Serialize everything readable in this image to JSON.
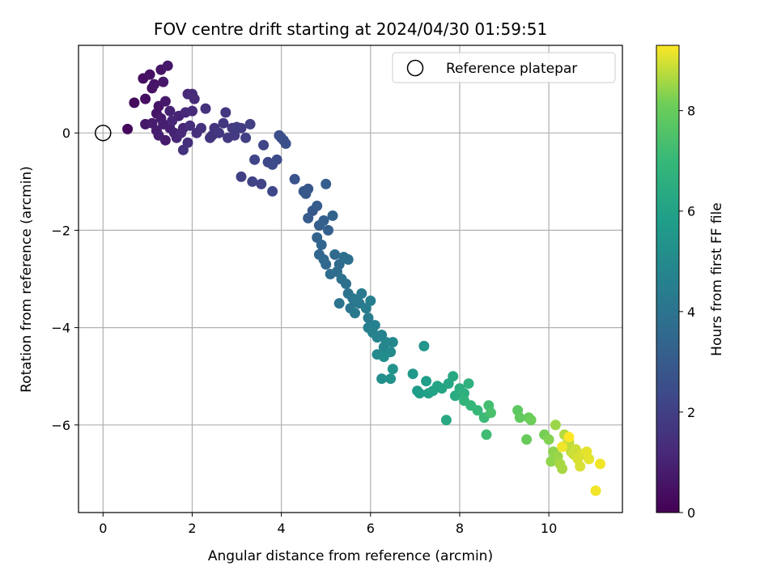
{
  "chart_data": {
    "type": "scatter",
    "title": "FOV centre drift starting at 2024/04/30 01:59:51",
    "xlabel": "Angular distance from reference (arcmin)",
    "ylabel": "Rotation from reference (arcmin)",
    "xlim": [
      -0.55,
      11.65
    ],
    "ylim": [
      -7.8,
      1.8
    ],
    "xticks": [
      0,
      2,
      4,
      6,
      8,
      10
    ],
    "yticks": [
      0,
      -2,
      -4,
      -6
    ],
    "grid": true,
    "legend": {
      "placement": "top-right",
      "entries": [
        "Reference platepar"
      ]
    },
    "colorbar": {
      "label": "Hours from first FF file",
      "min": 0,
      "max": 9.3,
      "ticks": [
        0,
        2,
        4,
        6,
        8
      ],
      "colormap": "viridis"
    },
    "reference_point": {
      "x": 0,
      "y": 0,
      "label": "Reference platepar"
    },
    "points": [
      [
        0.55,
        0.08,
        0.2
      ],
      [
        0.7,
        0.62,
        0.3
      ],
      [
        0.9,
        1.12,
        0.4
      ],
      [
        0.95,
        0.7,
        0.4
      ],
      [
        1.05,
        1.2,
        0.5
      ],
      [
        1.1,
        0.92,
        0.5
      ],
      [
        1.15,
        1.0,
        0.6
      ],
      [
        1.2,
        0.4,
        0.6
      ],
      [
        1.25,
        0.55,
        0.6
      ],
      [
        1.3,
        1.3,
        0.6
      ],
      [
        1.35,
        1.05,
        0.7
      ],
      [
        1.4,
        0.65,
        0.7
      ],
      [
        1.45,
        1.38,
        0.7
      ],
      [
        0.95,
        0.18,
        0.7
      ],
      [
        1.1,
        0.2,
        0.8
      ],
      [
        1.2,
        0.05,
        0.8
      ],
      [
        1.3,
        0.3,
        0.8
      ],
      [
        1.4,
        -0.15,
        0.8
      ],
      [
        1.5,
        0.1,
        0.9
      ],
      [
        1.35,
        0.18,
        0.9
      ],
      [
        1.25,
        -0.05,
        0.9
      ],
      [
        1.5,
        0.45,
        1.0
      ],
      [
        1.6,
        0.0,
        1.0
      ],
      [
        1.7,
        0.35,
        1.0
      ],
      [
        1.8,
        0.1,
        1.1
      ],
      [
        1.55,
        0.25,
        1.1
      ],
      [
        1.65,
        -0.1,
        1.1
      ],
      [
        1.75,
        0.0,
        1.2
      ],
      [
        1.85,
        0.42,
        1.2
      ],
      [
        1.9,
        0.8,
        1.2
      ],
      [
        2.0,
        0.8,
        1.3
      ],
      [
        2.05,
        0.7,
        1.3
      ],
      [
        2.0,
        0.45,
        1.3
      ],
      [
        1.95,
        0.15,
        1.4
      ],
      [
        2.1,
        0.0,
        1.4
      ],
      [
        1.9,
        -0.2,
        1.4
      ],
      [
        1.8,
        -0.35,
        1.5
      ],
      [
        2.2,
        0.1,
        1.5
      ],
      [
        2.3,
        0.5,
        1.5
      ],
      [
        2.4,
        -0.1,
        1.6
      ],
      [
        2.5,
        0.1,
        1.6
      ],
      [
        2.45,
        -0.05,
        1.6
      ],
      [
        2.6,
        0.0,
        1.7
      ],
      [
        2.7,
        0.2,
        1.7
      ],
      [
        2.75,
        0.42,
        1.7
      ],
      [
        2.8,
        -0.1,
        1.8
      ],
      [
        2.9,
        0.1,
        1.8
      ],
      [
        2.95,
        -0.05,
        1.8
      ],
      [
        3.0,
        0.12,
        1.9
      ],
      [
        3.1,
        0.1,
        1.9
      ],
      [
        3.2,
        -0.1,
        2.0
      ],
      [
        3.3,
        0.18,
        2.0
      ],
      [
        3.1,
        -0.9,
        2.0
      ],
      [
        3.35,
        -1.0,
        2.1
      ],
      [
        3.55,
        -1.05,
        2.1
      ],
      [
        3.4,
        -0.55,
        2.2
      ],
      [
        3.6,
        -0.25,
        2.2
      ],
      [
        3.8,
        -1.2,
        2.3
      ],
      [
        3.7,
        -0.6,
        2.3
      ],
      [
        3.8,
        -0.65,
        2.4
      ],
      [
        3.9,
        -0.55,
        2.4
      ],
      [
        3.95,
        -0.05,
        2.5
      ],
      [
        4.0,
        -0.1,
        2.5
      ],
      [
        4.05,
        -0.15,
        2.6
      ],
      [
        4.1,
        -0.22,
        2.6
      ],
      [
        4.3,
        -0.95,
        2.7
      ],
      [
        4.5,
        -1.2,
        2.8
      ],
      [
        4.6,
        -1.15,
        2.8
      ],
      [
        4.55,
        -1.25,
        2.9
      ],
      [
        4.7,
        -1.6,
        2.9
      ],
      [
        4.6,
        -1.75,
        3.0
      ],
      [
        4.8,
        -1.5,
        3.0
      ],
      [
        4.85,
        -1.9,
        3.1
      ],
      [
        5.0,
        -1.05,
        3.1
      ],
      [
        4.95,
        -1.8,
        3.2
      ],
      [
        5.05,
        -2.0,
        3.2
      ],
      [
        5.15,
        -1.7,
        3.3
      ],
      [
        4.8,
        -2.15,
        3.3
      ],
      [
        4.9,
        -2.3,
        3.4
      ],
      [
        4.85,
        -2.5,
        3.4
      ],
      [
        4.95,
        -2.6,
        3.5
      ],
      [
        5.0,
        -2.7,
        3.5
      ],
      [
        5.2,
        -2.5,
        3.6
      ],
      [
        5.3,
        -2.7,
        3.6
      ],
      [
        5.1,
        -2.9,
        3.7
      ],
      [
        5.25,
        -2.85,
        3.7
      ],
      [
        5.4,
        -2.55,
        3.8
      ],
      [
        5.5,
        -2.6,
        3.8
      ],
      [
        5.35,
        -3.0,
        3.9
      ],
      [
        5.45,
        -3.1,
        3.9
      ],
      [
        5.3,
        -3.5,
        4.0
      ],
      [
        5.5,
        -3.3,
        4.0
      ],
      [
        5.6,
        -3.4,
        4.1
      ],
      [
        5.55,
        -3.6,
        4.1
      ],
      [
        5.7,
        -3.45,
        4.2
      ],
      [
        5.65,
        -3.7,
        4.2
      ],
      [
        5.8,
        -3.3,
        4.3
      ],
      [
        5.75,
        -3.5,
        4.3
      ],
      [
        5.9,
        -3.6,
        4.4
      ],
      [
        5.95,
        -3.8,
        4.4
      ],
      [
        6.0,
        -3.45,
        4.5
      ],
      [
        5.95,
        -4.0,
        4.5
      ],
      [
        6.05,
        -4.1,
        4.6
      ],
      [
        6.1,
        -3.95,
        4.6
      ],
      [
        6.15,
        -4.2,
        4.7
      ],
      [
        6.25,
        -4.15,
        4.7
      ],
      [
        6.35,
        -4.3,
        4.8
      ],
      [
        6.3,
        -4.4,
        4.8
      ],
      [
        6.5,
        -4.3,
        4.9
      ],
      [
        6.45,
        -4.5,
        5.0
      ],
      [
        6.15,
        -4.55,
        5.0
      ],
      [
        6.3,
        -4.6,
        5.1
      ],
      [
        6.25,
        -5.05,
        5.2
      ],
      [
        6.45,
        -5.05,
        5.3
      ],
      [
        6.5,
        -4.85,
        5.4
      ],
      [
        7.2,
        -4.38,
        5.5
      ],
      [
        6.95,
        -4.95,
        5.6
      ],
      [
        7.05,
        -5.3,
        5.7
      ],
      [
        7.25,
        -5.1,
        5.8
      ],
      [
        7.1,
        -5.35,
        5.8
      ],
      [
        7.3,
        -5.35,
        5.9
      ],
      [
        7.4,
        -5.3,
        6.0
      ],
      [
        7.5,
        -5.2,
        6.1
      ],
      [
        7.6,
        -5.25,
        6.1
      ],
      [
        7.75,
        -5.15,
        6.2
      ],
      [
        7.7,
        -5.9,
        6.3
      ],
      [
        7.85,
        -5.0,
        6.3
      ],
      [
        7.9,
        -5.4,
        6.4
      ],
      [
        8.0,
        -5.25,
        6.5
      ],
      [
        8.1,
        -5.35,
        6.6
      ],
      [
        8.2,
        -5.15,
        6.7
      ],
      [
        8.1,
        -5.5,
        6.8
      ],
      [
        8.25,
        -5.6,
        6.9
      ],
      [
        8.4,
        -5.7,
        7.0
      ],
      [
        8.55,
        -5.85,
        7.1
      ],
      [
        8.6,
        -6.2,
        7.2
      ],
      [
        8.65,
        -5.6,
        7.3
      ],
      [
        8.7,
        -5.75,
        7.4
      ],
      [
        9.3,
        -5.7,
        7.8
      ],
      [
        9.35,
        -5.85,
        7.9
      ],
      [
        9.5,
        -6.3,
        8.0
      ],
      [
        9.55,
        -5.85,
        8.0
      ],
      [
        9.6,
        -5.9,
        8.1
      ],
      [
        9.9,
        -6.2,
        8.2
      ],
      [
        10.0,
        -6.3,
        8.3
      ],
      [
        10.05,
        -6.75,
        8.4
      ],
      [
        10.1,
        -6.55,
        8.4
      ],
      [
        10.15,
        -6.0,
        8.5
      ],
      [
        10.2,
        -6.65,
        8.5
      ],
      [
        10.25,
        -6.8,
        8.6
      ],
      [
        10.3,
        -6.9,
        8.6
      ],
      [
        10.35,
        -6.2,
        8.7
      ],
      [
        10.4,
        -6.4,
        8.7
      ],
      [
        10.45,
        -6.35,
        8.8
      ],
      [
        10.5,
        -6.55,
        8.8
      ],
      [
        10.55,
        -6.6,
        8.9
      ],
      [
        10.6,
        -6.5,
        8.9
      ],
      [
        10.65,
        -6.7,
        9.0
      ],
      [
        10.7,
        -6.85,
        9.0
      ],
      [
        10.75,
        -6.6,
        9.0
      ],
      [
        10.85,
        -6.55,
        9.1
      ],
      [
        10.9,
        -6.7,
        9.1
      ],
      [
        11.05,
        -7.35,
        9.2
      ],
      [
        11.15,
        -6.8,
        9.2
      ],
      [
        10.3,
        -6.45,
        9.2
      ],
      [
        10.45,
        -6.25,
        9.3
      ]
    ]
  }
}
